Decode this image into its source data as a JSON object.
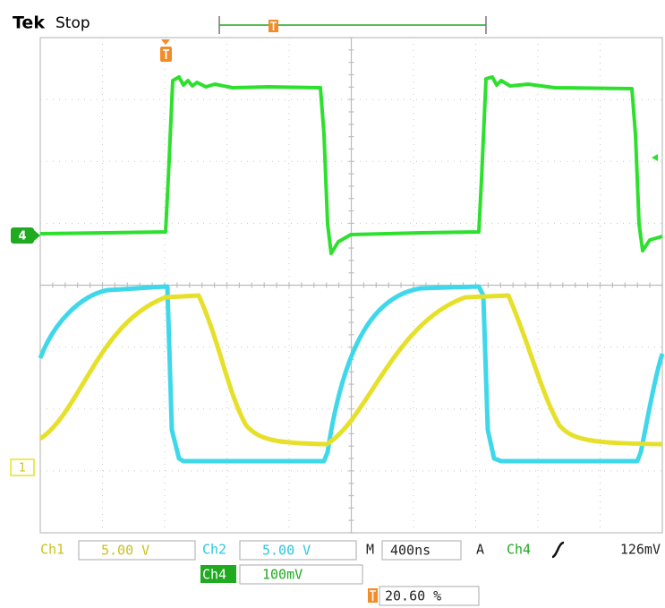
{
  "header": {
    "brand": "Tek",
    "status": "Stop"
  },
  "markers": {
    "ch4": "4",
    "ch1": "1"
  },
  "readout": {
    "ch1": {
      "label": "Ch1",
      "value": "5.00 V"
    },
    "ch2": {
      "label": "Ch2",
      "value": "5.00 V"
    },
    "ch4": {
      "label": "Ch4",
      "value": "100mV"
    },
    "timebase": {
      "label": "M",
      "value": "400ns"
    },
    "trigger": {
      "label": "A",
      "source": "Ch4",
      "level": "126mV"
    },
    "position": {
      "value": "20.60 %"
    }
  }
}
